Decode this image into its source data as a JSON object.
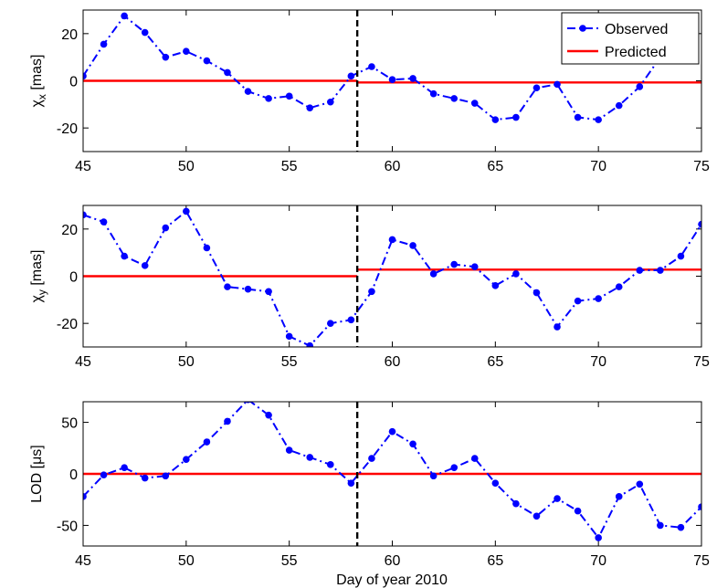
{
  "chart_data": {
    "type": "line",
    "xlabel": "Day of year 2010",
    "xlim": [
      45,
      75
    ],
    "xticks": [
      45,
      50,
      55,
      60,
      65,
      70,
      75
    ],
    "event_line_x": 58.3,
    "legend": {
      "placement": "top-right",
      "entries": [
        "Observed",
        "Predicted"
      ]
    },
    "colors": {
      "observed": "#0000ff",
      "predicted": "#ff0000",
      "event": "#000000"
    },
    "panels": [
      {
        "ylabel_main": "χ",
        "ylabel_sub": "x",
        "ylabel_unit": " [mas]",
        "ylim": [
          -30,
          30
        ],
        "yticks": [
          -20,
          0,
          20
        ],
        "observed": {
          "x": [
            45,
            46,
            47,
            48,
            49,
            50,
            51,
            52,
            53,
            54,
            55,
            56,
            57,
            58,
            59,
            60,
            61,
            62,
            63,
            64,
            65,
            66,
            67,
            68,
            69,
            70,
            71,
            72,
            73,
            74
          ],
          "y": [
            2,
            15.5,
            27.5,
            20.5,
            10,
            12.5,
            8.5,
            3.5,
            -4.5,
            -7.5,
            -6.5,
            -11.5,
            -9,
            2,
            6,
            0.5,
            1,
            -5.5,
            -7.5,
            -9.5,
            -16.5,
            -15.5,
            -3,
            -1.5,
            -15.5,
            -16.5,
            -10.5,
            -2.5,
            10,
            27.5
          ]
        },
        "predicted": {
          "segments": [
            {
              "x": [
                45,
                58.3
              ],
              "y": [
                0,
                0
              ]
            },
            {
              "x": [
                58.3,
                75
              ],
              "y": [
                -0.7,
                -0.7
              ]
            }
          ]
        },
        "show_legend": true
      },
      {
        "ylabel_main": "χ",
        "ylabel_sub": "y",
        "ylabel_unit": " [mas]",
        "ylim": [
          -30,
          30
        ],
        "yticks": [
          -20,
          0,
          20
        ],
        "observed": {
          "x": [
            45,
            46,
            47,
            48,
            49,
            50,
            51,
            52,
            53,
            54,
            55,
            56,
            57,
            58,
            59,
            60,
            61,
            62,
            63,
            64,
            65,
            66,
            67,
            68,
            69,
            70,
            71,
            72,
            73,
            74,
            75
          ],
          "y": [
            26,
            23,
            8.5,
            4.5,
            20.5,
            27.5,
            12,
            -4.5,
            -5.5,
            -6.5,
            -25.5,
            -29.5,
            -20,
            -18.5,
            -6.5,
            15.5,
            13,
            1,
            5,
            4,
            -4,
            1,
            -7,
            -21.5,
            -10.5,
            -9.5,
            -4.5,
            2.5,
            2.5,
            8.5,
            22
          ]
        },
        "predicted": {
          "segments": [
            {
              "x": [
                45,
                58.3
              ],
              "y": [
                0,
                0
              ]
            },
            {
              "x": [
                58.3,
                75
              ],
              "y": [
                2.8,
                2.8
              ]
            }
          ]
        },
        "show_legend": false
      },
      {
        "ylabel_main": "LOD [μs]",
        "ylabel_sub": "",
        "ylabel_unit": "",
        "ylim": [
          -70,
          70
        ],
        "yticks": [
          -50,
          0,
          50
        ],
        "observed": {
          "x": [
            45,
            46,
            47,
            48,
            49,
            50,
            51,
            52,
            53,
            54,
            55,
            56,
            57,
            58,
            59,
            60,
            61,
            62,
            63,
            64,
            65,
            66,
            67,
            68,
            69,
            70,
            71,
            72,
            73,
            74,
            75
          ],
          "y": [
            -22,
            -1,
            6,
            -4,
            -2,
            14,
            31,
            51,
            72,
            57,
            23,
            16,
            9,
            -9,
            15,
            41,
            29,
            -2,
            6,
            15,
            -9,
            -29,
            -41,
            -24,
            -36,
            -62,
            -22,
            -10,
            -50,
            -52,
            -32
          ]
        },
        "predicted": {
          "segments": [
            {
              "x": [
                45,
                75
              ],
              "y": [
                0,
                0
              ]
            }
          ]
        },
        "show_legend": false
      }
    ]
  }
}
